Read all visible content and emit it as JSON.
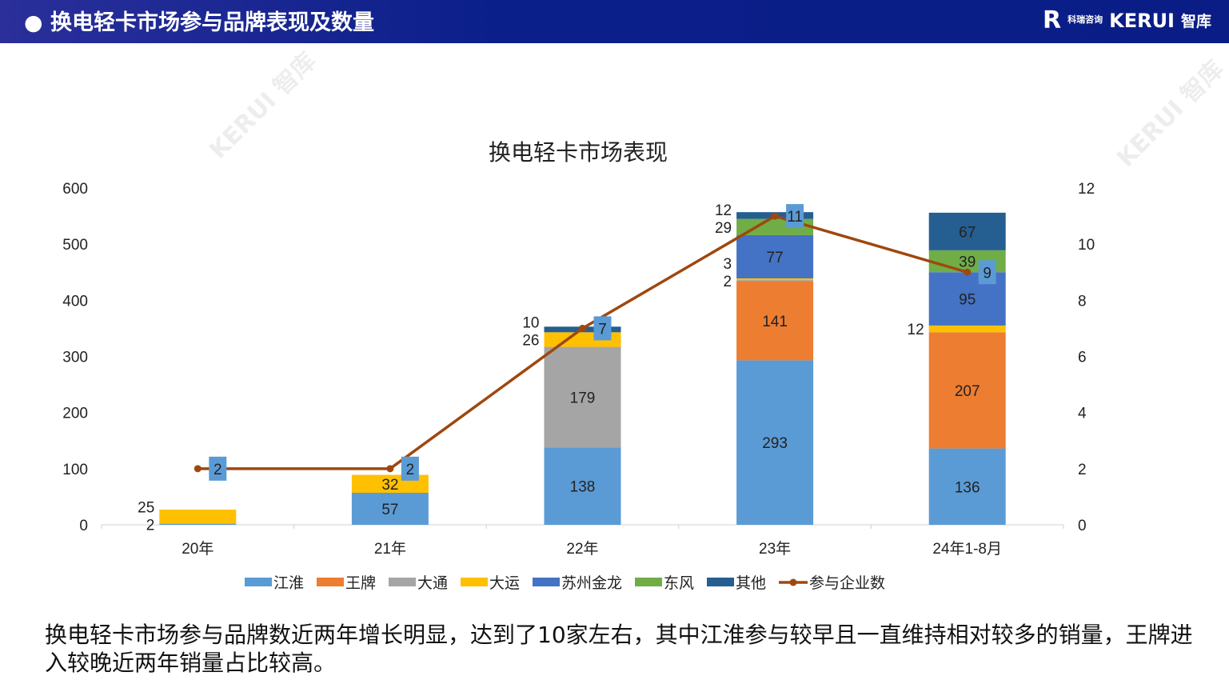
{
  "header": {
    "title": "换电轻卡市场参与品牌表现及数量",
    "logo_cn": "科瑞咨询",
    "logo_en": "KERUI",
    "logo_zh": "智库"
  },
  "watermark": "KERUI 智库",
  "chart_data": {
    "type": "bar",
    "title": "换电轻卡市场表现",
    "categories": [
      "20年",
      "21年",
      "22年",
      "23年",
      "24年1-8月"
    ],
    "series": [
      {
        "name": "江淮",
        "color": "#5b9bd5",
        "values": [
          2,
          57,
          138,
          293,
          136
        ]
      },
      {
        "name": "王牌",
        "color": "#ed7d31",
        "values": [
          0,
          0,
          0,
          141,
          207
        ]
      },
      {
        "name": "大通",
        "color": "#a5a5a5",
        "values": [
          0,
          0,
          179,
          2,
          0
        ]
      },
      {
        "name": "大运",
        "color": "#ffc000",
        "values": [
          25,
          32,
          26,
          3,
          12
        ]
      },
      {
        "name": "苏州金龙",
        "color": "#4472c4",
        "values": [
          0,
          0,
          0,
          77,
          95
        ]
      },
      {
        "name": "东风",
        "color": "#70ad47",
        "values": [
          0,
          0,
          0,
          29,
          39
        ]
      },
      {
        "name": "其他",
        "color": "#255e91",
        "values": [
          0,
          0,
          10,
          12,
          67
        ]
      }
    ],
    "line": {
      "name": "参与企业数",
      "color": "#9e480e",
      "axis": "right",
      "values": [
        2,
        2,
        7,
        11,
        9
      ]
    },
    "ylim": [
      0,
      600
    ],
    "yticks": [
      "0",
      "100",
      "200",
      "300",
      "400",
      "500",
      "600"
    ],
    "y2lim": [
      0,
      12
    ],
    "y2ticks": [
      "0",
      "2",
      "4",
      "6",
      "8",
      "10",
      "12"
    ],
    "legend": "bottom"
  },
  "caption": "换电轻卡市场参与品牌数近两年增长明显，达到了10家左右，其中江淮参与较早且一直维持相对较多的销量，王牌进入较晚近两年销量占比较高。"
}
